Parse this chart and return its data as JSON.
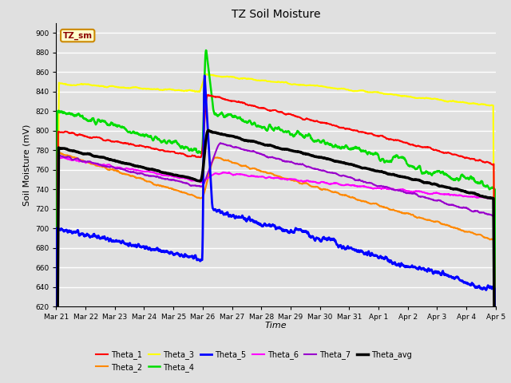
{
  "title": "TZ Soil Moisture",
  "xlabel": "Time",
  "ylabel": "Soil Moisture (mV)",
  "ylim": [
    620,
    910
  ],
  "yticks": [
    620,
    640,
    660,
    680,
    700,
    720,
    740,
    760,
    780,
    800,
    820,
    840,
    860,
    880,
    900
  ],
  "series_colors": {
    "Theta_1": "#ff0000",
    "Theta_2": "#ff8800",
    "Theta_3": "#ffff00",
    "Theta_4": "#00dd00",
    "Theta_5": "#0000ff",
    "Theta_6": "#ff00ff",
    "Theta_7": "#9900cc",
    "Theta_avg": "#000000"
  },
  "series_linewidths": {
    "Theta_1": 1.5,
    "Theta_2": 1.5,
    "Theta_3": 1.5,
    "Theta_4": 1.8,
    "Theta_5": 2.0,
    "Theta_6": 1.5,
    "Theta_7": 1.5,
    "Theta_avg": 2.5
  },
  "background_color": "#e0e0e0",
  "grid_color": "#ffffff",
  "legend_label": "TZ_sm",
  "x_tick_labels": [
    "Mar 21",
    "Mar 22",
    "Mar 23",
    "Mar 24",
    "Mar 25",
    "Mar 26",
    "Mar 27",
    "Mar 28",
    "Mar 29",
    "Mar 30",
    "Mar 31",
    "Apr 1",
    "Apr 2",
    "Apr 3",
    "Apr 4",
    "Apr 5"
  ]
}
